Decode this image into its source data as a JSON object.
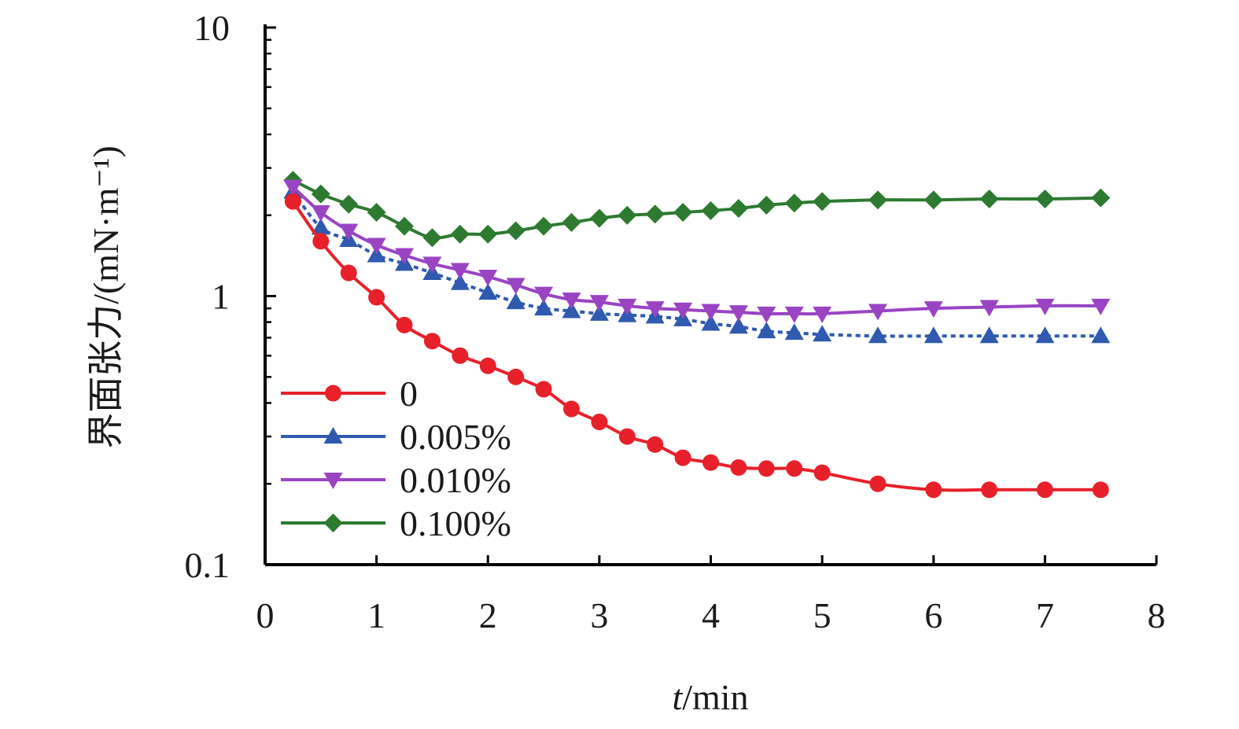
{
  "chart_data": {
    "type": "line",
    "xlabel": "t/min",
    "xlabel_italic_part": "t",
    "xlabel_rest": "/min",
    "ylabel": "界面张力/(mN·m⁻¹)",
    "xlim": [
      0,
      8
    ],
    "ylim": [
      0.1,
      10
    ],
    "yscale": "log",
    "x_ticks": [
      0,
      1,
      2,
      3,
      4,
      5,
      6,
      7,
      8
    ],
    "x_tick_labels": [
      "0",
      "1",
      "2",
      "3",
      "4",
      "5",
      "6",
      "7",
      "8"
    ],
    "y_ticks": [
      0.1,
      1,
      10
    ],
    "y_tick_labels": [
      "0.1",
      "1",
      "10"
    ],
    "grid": false,
    "legend_position": "lower-left",
    "series": [
      {
        "name": "0",
        "color": "#e8202a",
        "marker": "circle",
        "line_style": "solid",
        "x": [
          0.25,
          0.5,
          0.75,
          1.0,
          1.25,
          1.5,
          1.75,
          2.0,
          2.25,
          2.5,
          2.75,
          3.0,
          3.25,
          3.5,
          3.75,
          4.0,
          4.25,
          4.5,
          4.75,
          5.0,
          5.5,
          6.0,
          6.5,
          7.0,
          7.5
        ],
        "values": [
          2.25,
          1.6,
          1.22,
          0.99,
          0.78,
          0.68,
          0.6,
          0.55,
          0.5,
          0.45,
          0.38,
          0.34,
          0.3,
          0.28,
          0.25,
          0.24,
          0.23,
          0.228,
          0.228,
          0.22,
          0.2,
          0.19,
          0.19,
          0.19,
          0.19
        ]
      },
      {
        "name": "0.005%",
        "color": "#2f5aaf",
        "marker": "triangle-up",
        "line_style": "dotted",
        "x": [
          0.25,
          0.5,
          0.75,
          1.0,
          1.25,
          1.5,
          1.75,
          2.0,
          2.25,
          2.5,
          2.75,
          3.0,
          3.25,
          3.5,
          3.75,
          4.0,
          4.25,
          4.5,
          4.75,
          5.0,
          5.5,
          6.0,
          6.5,
          7.0,
          7.5
        ],
        "values": [
          2.45,
          1.8,
          1.62,
          1.42,
          1.32,
          1.22,
          1.12,
          1.03,
          0.95,
          0.9,
          0.88,
          0.86,
          0.85,
          0.84,
          0.82,
          0.79,
          0.77,
          0.74,
          0.73,
          0.72,
          0.71,
          0.71,
          0.71,
          0.71,
          0.71
        ]
      },
      {
        "name": "0.010%",
        "color": "#9a44c4",
        "marker": "triangle-down",
        "line_style": "solid",
        "x": [
          0.25,
          0.5,
          0.75,
          1.0,
          1.25,
          1.5,
          1.75,
          2.0,
          2.25,
          2.5,
          2.75,
          3.0,
          3.25,
          3.5,
          3.75,
          4.0,
          4.25,
          4.5,
          4.75,
          5.0,
          5.5,
          6.0,
          6.5,
          7.0,
          7.5
        ],
        "values": [
          2.55,
          2.05,
          1.75,
          1.55,
          1.42,
          1.32,
          1.25,
          1.18,
          1.1,
          1.02,
          0.97,
          0.95,
          0.92,
          0.9,
          0.89,
          0.88,
          0.87,
          0.86,
          0.86,
          0.86,
          0.88,
          0.9,
          0.91,
          0.92,
          0.92
        ]
      },
      {
        "name": "0.100%",
        "color": "#2d7a30",
        "marker": "diamond",
        "line_style": "solid",
        "x": [
          0.25,
          0.5,
          0.75,
          1.0,
          1.25,
          1.5,
          1.75,
          2.0,
          2.25,
          2.5,
          2.75,
          3.0,
          3.25,
          3.5,
          3.75,
          4.0,
          4.25,
          4.5,
          4.75,
          5.0,
          5.5,
          6.0,
          6.5,
          7.0,
          7.5
        ],
        "values": [
          2.7,
          2.4,
          2.2,
          2.05,
          1.82,
          1.65,
          1.7,
          1.7,
          1.75,
          1.82,
          1.88,
          1.95,
          2.0,
          2.02,
          2.05,
          2.08,
          2.12,
          2.18,
          2.22,
          2.25,
          2.28,
          2.28,
          2.3,
          2.3,
          2.32
        ]
      }
    ]
  }
}
